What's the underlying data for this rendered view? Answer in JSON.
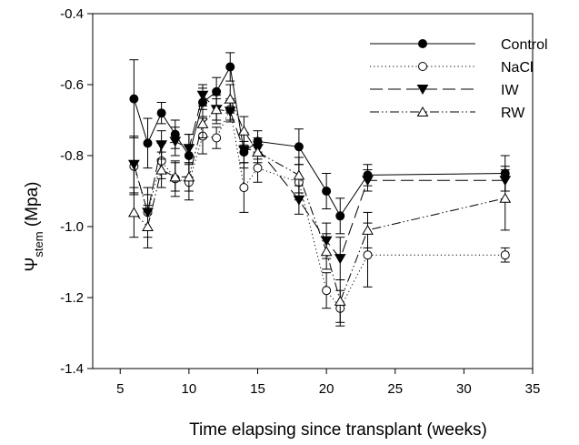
{
  "chart_data": {
    "type": "scatter",
    "xlabel": "Time elapsing since transplant (weeks)",
    "ylabel": {
      "main": "Ψ",
      "sub": "stem",
      "unit": " (Mpa)"
    },
    "xlim": [
      3,
      35
    ],
    "ylim": [
      -1.4,
      -0.4
    ],
    "xticks": [
      5,
      10,
      15,
      20,
      25,
      30,
      35
    ],
    "yticks": [
      -1.4,
      -1.2,
      -1.0,
      -0.8,
      -0.6,
      -0.4
    ],
    "ytick_labels": [
      "-1.4",
      "-1.2",
      "-1.0",
      "-0.8",
      "-0.6",
      "-0.4"
    ],
    "grid": false,
    "legend_position": "top-right",
    "series": [
      {
        "name": "Control",
        "line": "solid",
        "marker": "circle-filled",
        "x": [
          6,
          7,
          8,
          9,
          10,
          11,
          12,
          13,
          14,
          15,
          18,
          20,
          21,
          23,
          33
        ],
        "y": [
          -0.64,
          -0.765,
          -0.68,
          -0.74,
          -0.8,
          -0.65,
          -0.62,
          -0.55,
          -0.79,
          -0.76,
          -0.775,
          -0.9,
          -0.97,
          -0.855,
          -0.85
        ],
        "err": [
          0.11,
          0.07,
          0.03,
          0.04,
          0.06,
          0.04,
          0.04,
          0.04,
          0.03,
          0.03,
          0.05,
          0.05,
          0.05,
          0.03,
          0.05
        ]
      },
      {
        "name": "NaCl",
        "line": "dotted",
        "marker": "circle-open",
        "x": [
          6,
          7,
          8,
          9,
          10,
          11,
          12,
          13,
          14,
          15,
          18,
          20,
          21,
          23,
          33
        ],
        "y": [
          -0.83,
          -0.96,
          -0.815,
          -0.865,
          -0.875,
          -0.745,
          -0.75,
          -0.67,
          -0.89,
          -0.835,
          -0.875,
          -1.18,
          -1.23,
          -1.08,
          -1.08
        ],
        "err": [
          0.08,
          0.07,
          0.05,
          0.05,
          0.05,
          0.05,
          0.03,
          0.03,
          0.07,
          0.04,
          0.05,
          0.05,
          0.05,
          0.09,
          0.02
        ]
      },
      {
        "name": "IW",
        "line": "dashed",
        "marker": "triangle-down-filled",
        "x": [
          6,
          7,
          8,
          9,
          10,
          11,
          12,
          13,
          14,
          15,
          18,
          20,
          21,
          23,
          33
        ],
        "y": [
          -0.825,
          -0.96,
          -0.77,
          -0.76,
          -0.78,
          -0.63,
          -0.67,
          -0.675,
          -0.785,
          -0.78,
          -0.925,
          -1.04,
          -1.09,
          -0.87,
          -0.87
        ],
        "err": [
          0.08,
          0.05,
          0.04,
          0.04,
          0.04,
          0.03,
          0.03,
          0.03,
          0.05,
          0.03,
          0.04,
          0.05,
          0.06,
          0.03,
          0.03
        ]
      },
      {
        "name": "RW",
        "line": "dash-dot-dot",
        "marker": "triangle-up-open",
        "x": [
          6,
          7,
          8,
          9,
          10,
          11,
          12,
          13,
          14,
          15,
          18,
          20,
          21,
          23,
          33
        ],
        "y": [
          -0.96,
          -1.0,
          -0.84,
          -0.86,
          -0.86,
          -0.71,
          -0.67,
          -0.64,
          -0.73,
          -0.79,
          -0.855,
          -1.07,
          -1.21,
          -1.01,
          -0.92
        ],
        "err": [
          0.07,
          0.06,
          0.05,
          0.04,
          0.04,
          0.04,
          0.04,
          0.04,
          0.04,
          0.03,
          0.05,
          0.05,
          0.06,
          0.05,
          0.09
        ]
      }
    ]
  }
}
